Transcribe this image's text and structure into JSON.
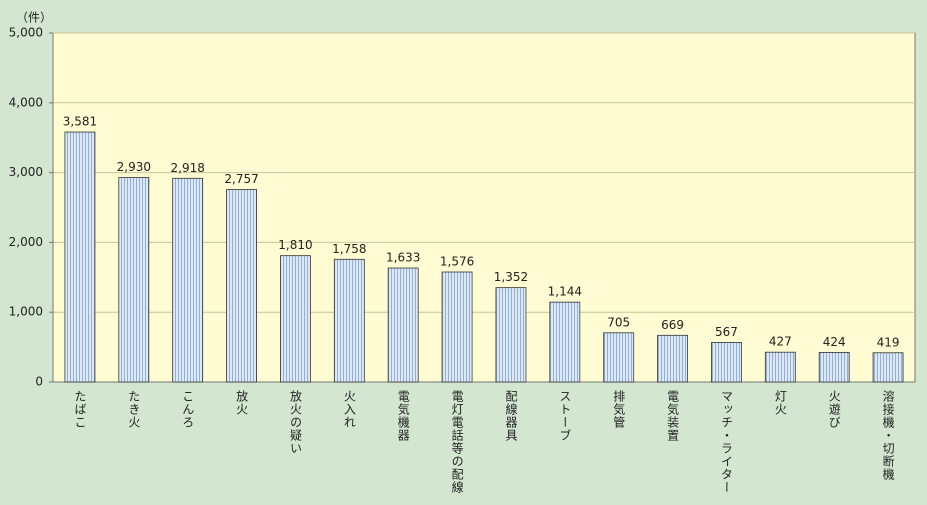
{
  "chart_data": {
    "type": "bar",
    "y_label": "（件）",
    "categories": [
      "たばこ",
      "たき火",
      "こんろ",
      "放火",
      "放火の疑い",
      "火入れ",
      "電気機器",
      "電灯電話等の配線",
      "配線器具",
      "ストーブ",
      "排気管",
      "電気装置",
      "マッチ・ライター",
      "灯火",
      "火遊び",
      "溶接機・切断機"
    ],
    "values": [
      3581,
      2930,
      2918,
      2757,
      1810,
      1758,
      1633,
      1576,
      1352,
      1144,
      705,
      669,
      567,
      427,
      424,
      419
    ],
    "value_labels": [
      "3,581",
      "2,930",
      "2,918",
      "2,757",
      "1,810",
      "1,758",
      "1,633",
      "1,576",
      "1,352",
      "1,144",
      "705",
      "669",
      "567",
      "427",
      "424",
      "419"
    ],
    "color": "#8fb0d8",
    "ylim": [
      0,
      5000
    ],
    "yticks": [
      0,
      {
        "value": 1000,
        "label": "1,000"
      },
      {
        "value": 2000,
        "label": "2,000"
      },
      {
        "value": 3000,
        "label": "3,000"
      },
      {
        "value": 4000,
        "label": "4,000"
      },
      {
        "value": 5000,
        "label": "5,000"
      }
    ],
    "grid": true
  }
}
